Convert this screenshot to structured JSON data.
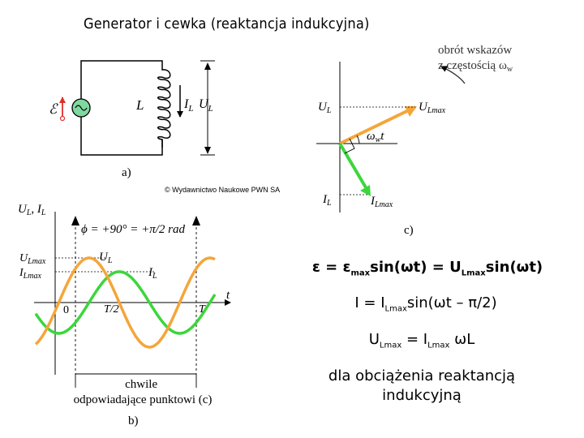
{
  "title": "Generator i cewka (reaktancja indukcyjna)",
  "credit": "© Wydawnictwo Naukowe PWN SA",
  "circuit": {
    "emf_symbol": "ℰ",
    "coil_label": "L",
    "current_label": "I",
    "current_sub": "L",
    "voltage_label": "U",
    "voltage_sub": "L",
    "caption": "a)"
  },
  "phasor": {
    "rotation_note_line1": "obrót wskazów",
    "rotation_note_line2": "z częstością ω",
    "rotation_note_sub": "w",
    "axis_u": "U",
    "axis_u_sub": "L",
    "axis_i": "I",
    "axis_i_sub": "L",
    "u_phasor": "U",
    "u_phasor_sub": "Lmax",
    "i_phasor": "I",
    "i_phasor_sub": "Lmax",
    "angle": "ω",
    "angle_sub": "w",
    "angle_t": "t",
    "caption": "c)",
    "colors": {
      "u": "#f5a53a",
      "i": "#3cd63c"
    }
  },
  "waveform": {
    "y_axis_u": "U",
    "y_axis_u_sub": "L",
    "y_axis_sep": ", ",
    "y_axis_i": "I",
    "y_axis_i_sub": "L",
    "phase": "ϕ = +90° = +π/2 rad",
    "u_max": "U",
    "u_max_sub": "Lmax",
    "i_max": "I",
    "i_max_sub": "Lmax",
    "curve_u": "U",
    "curve_u_sub": "L",
    "curve_i": "I",
    "curve_i_sub": "L",
    "t_axis": "t",
    "tick_0": "0",
    "tick_half": "T/2",
    "tick_T": "T",
    "bracket_line1": "chwile",
    "bracket_line2": "odpowiadające punktowi (c)",
    "caption": "b)"
  },
  "equations": {
    "eq1": {
      "lhs": "ε = ε",
      "sub1": "max",
      "mid": "sin(ωt) = U",
      "sub2": "Lmax",
      "rhs": "sin(ωt)"
    },
    "eq2": {
      "lhs": "I = I",
      "sub1": "Lmax",
      "rhs": "sin(ωt – π/2)"
    },
    "eq3": {
      "lhs": "U",
      "sub1": "Lmax",
      "mid": " = I",
      "sub2": "Lmax",
      "rhs": " ωL"
    },
    "note_line1": "dla obciążenia reaktancją",
    "note_line2": "indukcyjną"
  }
}
